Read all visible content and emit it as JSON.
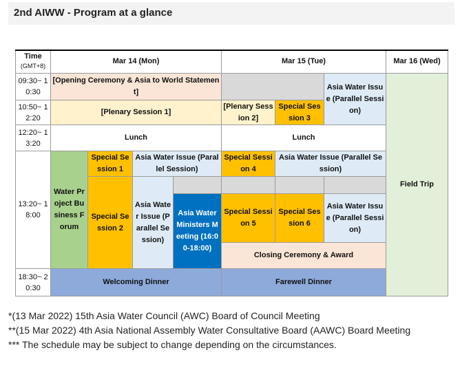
{
  "title": "2nd AIWW - Program at a glance",
  "header": {
    "time": "Time",
    "tz": "(GMT+8)",
    "day1": "Mar 14 (Mon)",
    "day2": "Mar 15 (Tue)",
    "day3": "Mar 16 (Wed)"
  },
  "times": {
    "t1": "09:30~ 10:30",
    "t2": "10:50~ 12:20",
    "t3": "12:20~ 13:20",
    "t4": "13:20~ 18:00",
    "t5": "18:30~ 20:30"
  },
  "sessions": {
    "opening": "[Opening Ceremony & Asia to World Statement]",
    "plenary1": "[Plenary Session 1]",
    "plenary2": "[Plenary Session 2]",
    "special3": "Special Session 3",
    "awi_tue_am": "Asia Water Issue (Parallel Session)",
    "lunch_mon": "Lunch",
    "lunch_tue": "Lunch",
    "field_trip": "Field Trip",
    "water_project": "Water Project Business Forum",
    "special1": "Special Session 1",
    "awi_mon_top": "Asia Water Issue (Parallel Session)",
    "special2": "Special Session 2",
    "awi_mon_col": "Asia Water Issue (Parallel Session)",
    "ministers": "Asia Water Ministers Meeting (16:00-18:00)",
    "special4": "Special Session 4",
    "awi_tue_top": "Asia Water Issue (Parallel Session)",
    "special5": "Special Session 5",
    "special6": "Special Session 6",
    "awi_tue_mid": "Asia Water Issue (Parallel Session)",
    "closing": "Closing Ceremony & Award",
    "welcoming": "Welcoming Dinner",
    "farewell": "Farewell Dinner"
  },
  "notes": [
    "*(13 Mar 2022) 15th Asia Water Council (AWC) Board of Council Meeting",
    "**(15 Mar 2022) 4th Asia National Assembly Water Consultative Board (AAWC) Board Meeting",
    "*** The schedule may be subject to change depending on the circumstances."
  ]
}
